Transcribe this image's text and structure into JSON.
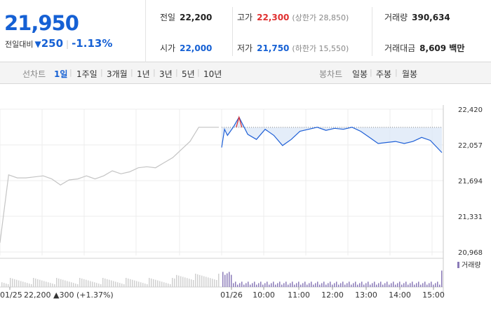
{
  "quote": {
    "price": "21,950",
    "change_label": "전일대비",
    "change_amount": "250",
    "change_pct": "-1.13%",
    "prev_close": {
      "label": "전일",
      "value": "22,200"
    },
    "high": {
      "label": "고가",
      "value": "22,300",
      "sub": "(상한가 28,850)"
    },
    "volume": {
      "label": "거래량",
      "value": "390,634"
    },
    "open": {
      "label": "시가",
      "value": "22,000"
    },
    "low": {
      "label": "저가",
      "value": "21,750",
      "sub": "(하한가 15,550)"
    },
    "turnover": {
      "label": "거래대금",
      "value": "8,609 백만"
    }
  },
  "toolbar": {
    "line_label": "선차트",
    "line_items": [
      "1일",
      "1주일",
      "3개월",
      "1년",
      "3년",
      "5년",
      "10년"
    ],
    "line_active": "1일",
    "candle_label": "봉차트",
    "candle_items": [
      "일봉",
      "주봉",
      "월봉"
    ]
  },
  "chart_data": {
    "type": "line",
    "series": [
      {
        "previous_day": true,
        "x": [
          "09:00",
          "09:15",
          "09:30",
          "09:45",
          "10:00",
          "10:15",
          "10:30",
          "10:45",
          "11:00",
          "11:15",
          "11:30",
          "11:45",
          "12:00",
          "12:15",
          "12:30",
          "12:45",
          "13:00",
          "13:15",
          "13:30",
          "13:45",
          "14:00",
          "14:15",
          "14:30",
          "14:45",
          "15:00",
          "15:20"
        ],
        "values": [
          21060,
          21730,
          21700,
          21700,
          21710,
          21720,
          21690,
          21630,
          21680,
          21690,
          21720,
          21690,
          21720,
          21770,
          21740,
          21760,
          21800,
          21810,
          21800,
          21850,
          21900,
          21980,
          22060,
          22200,
          22200,
          22200
        ]
      },
      {
        "x": [
          "09:00",
          "09:05",
          "09:10",
          "09:20",
          "09:30",
          "09:45",
          "10:00",
          "10:15",
          "10:30",
          "10:45",
          "11:00",
          "11:15",
          "11:30",
          "11:45",
          "12:00",
          "12:15",
          "12:30",
          "12:45",
          "13:00",
          "13:15",
          "13:30",
          "13:45",
          "14:00",
          "14:15",
          "14:30",
          "14:45",
          "15:00",
          "15:20"
        ],
        "values": [
          22000,
          22180,
          22120,
          22200,
          22300,
          22130,
          22080,
          22180,
          22120,
          22020,
          22080,
          22160,
          22180,
          22200,
          22170,
          22190,
          22180,
          22200,
          22160,
          22100,
          22040,
          22050,
          22060,
          22040,
          22060,
          22100,
          22070,
          21950
        ]
      }
    ],
    "prev_close": 22200,
    "y_ticks": [
      "22,420",
      "22,057",
      "21,694",
      "21,331",
      "20,968"
    ],
    "ylim": [
      20968,
      22420
    ],
    "x_ticks": [
      "01/25",
      "01/26",
      "10:00",
      "11:00",
      "12:00",
      "13:00",
      "14:00",
      "15:00"
    ],
    "prev_day_label": {
      "date": "01/25",
      "price": "22,200",
      "change": "300",
      "pct": "(+1.37%)"
    },
    "volume_label": "거래량",
    "colors": {
      "today": "#1e5fd6",
      "previous": "#c4c4c4",
      "up": "#e03030",
      "fill": "#dde9f8"
    }
  }
}
